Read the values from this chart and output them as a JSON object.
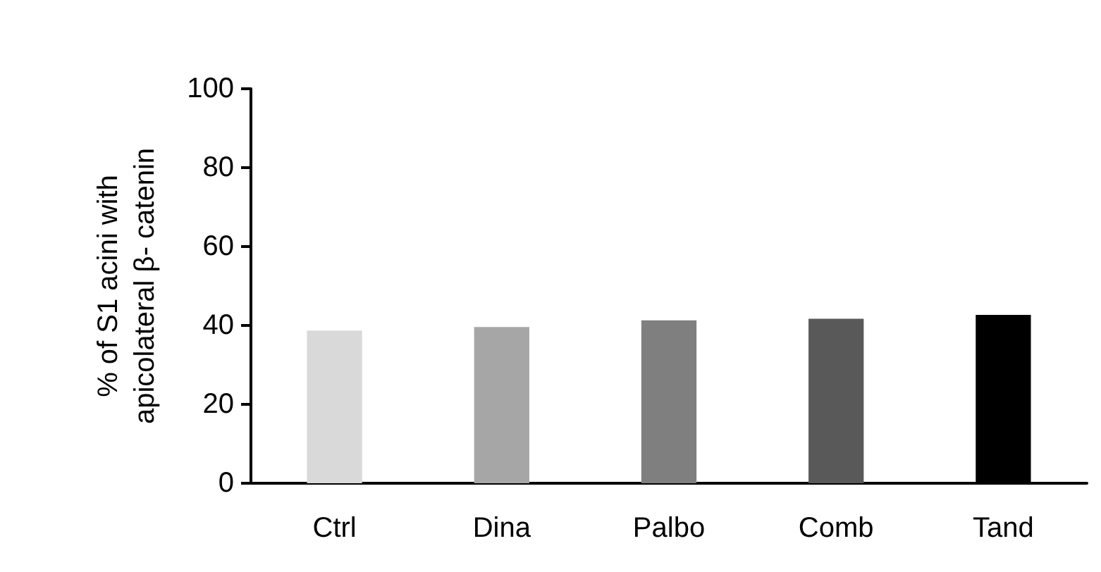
{
  "chart_data": {
    "type": "bar",
    "ylabel": "% of S1 acini with\napicolateral β- catenin",
    "categories": [
      "Ctrl",
      "Dina",
      "Palbo",
      "Comb",
      "Tand"
    ],
    "values": [
      38.7,
      39.6,
      41.3,
      41.7,
      42.7
    ],
    "colors": [
      "#d9d9d9",
      "#a6a6a6",
      "#7f7f7f",
      "#595959",
      "#000000"
    ],
    "ylim": [
      0,
      100
    ],
    "yticks": [
      0,
      20,
      40,
      60,
      80,
      100
    ],
    "grid": false
  }
}
